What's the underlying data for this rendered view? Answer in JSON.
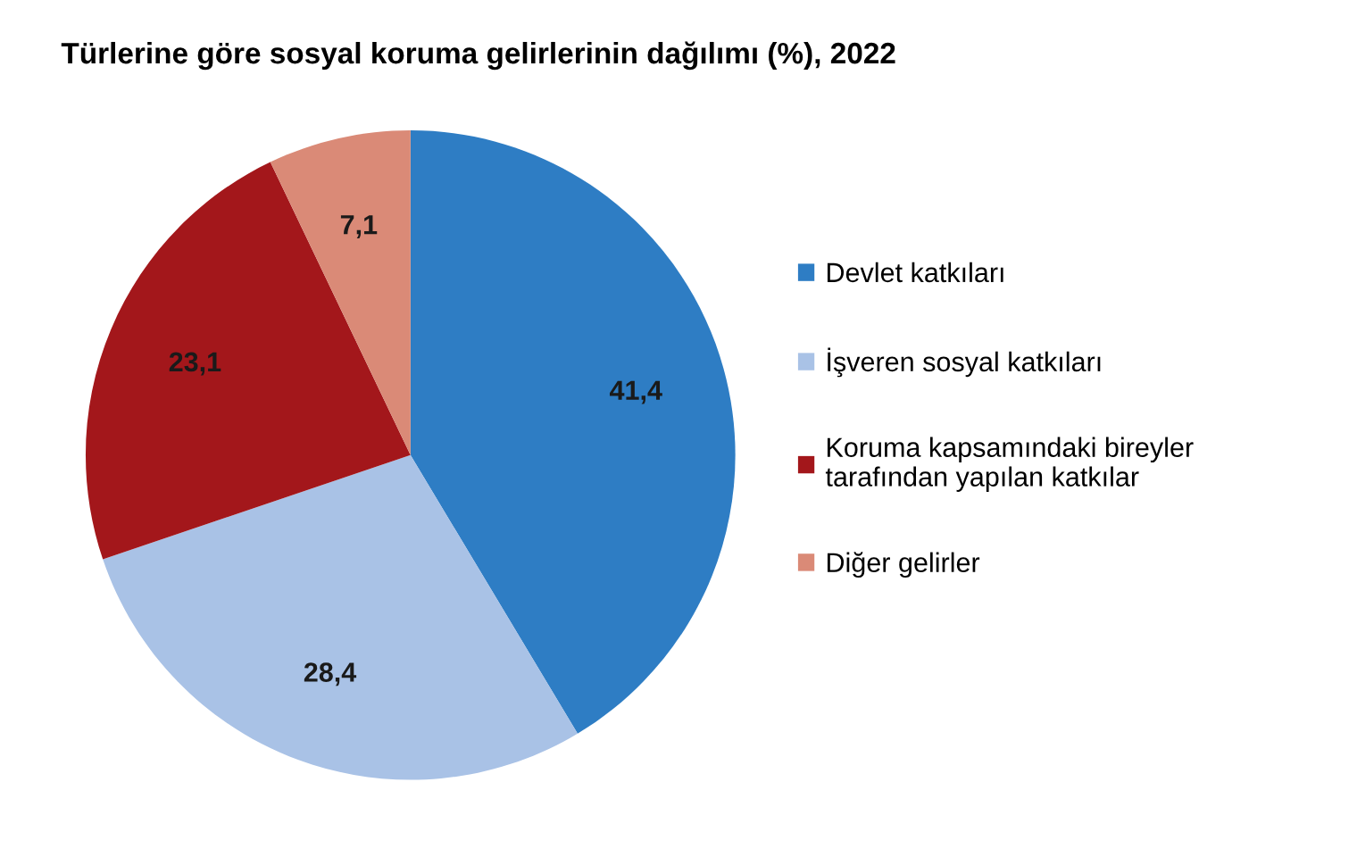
{
  "chart_data": {
    "type": "pie",
    "title": "Türlerine göre sosyal koruma gelirlerinin dağılımı (%), 2022",
    "categories": [
      "Devlet katkıları",
      "İşveren sosyal katkıları",
      "Koruma kapsamındaki bireyler\ntarafından yapılan katkılar",
      "Diğer gelirler"
    ],
    "values": [
      41.4,
      28.4,
      23.1,
      7.1
    ],
    "value_labels": [
      "41,4",
      "28,4",
      "23,1",
      "7,1"
    ],
    "colors": [
      "#2e7dc4",
      "#a9c2e6",
      "#a3171b",
      "#da8a77"
    ],
    "legend": "right"
  }
}
